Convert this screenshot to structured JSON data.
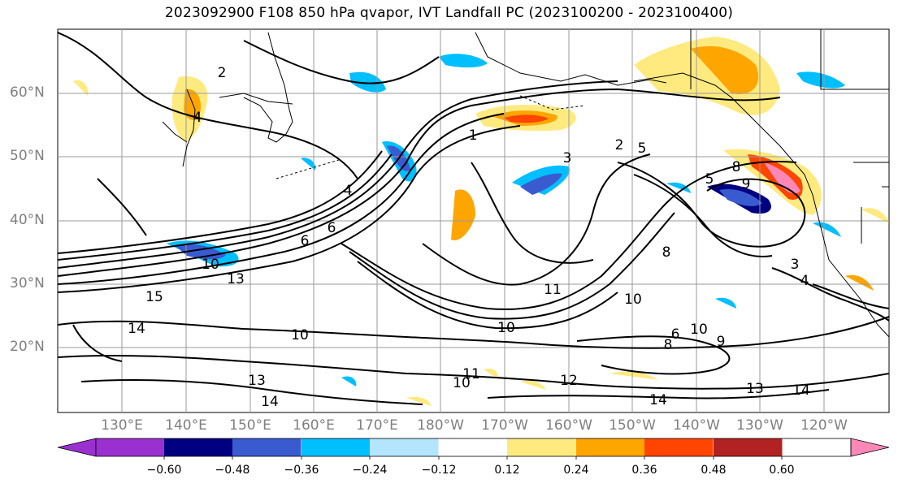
{
  "title": "2023092900 F108 850 hPa qvapor, IVT Landfall PC (2023100200 - 2023100400)",
  "latitude_labels": [
    "60°N",
    "50°N",
    "40°N",
    "30°N",
    "20°N"
  ],
  "longitude_labels": [
    "130°E",
    "140°E",
    "150°E",
    "160°E",
    "170°E",
    "180°W",
    "170°W",
    "160°W",
    "150°W",
    "140°W",
    "130°W",
    "120°W"
  ],
  "colorbar": {
    "ticks": [
      "−0.60",
      "−0.48",
      "−0.36",
      "−0.24",
      "−0.12",
      "0.12",
      "0.24",
      "0.36",
      "0.48",
      "0.60"
    ],
    "colors": [
      "#9b30d0",
      "#000080",
      "#3a5bd0",
      "#00bfff",
      "#b3e5fc",
      "#ffffff",
      "#ffea80",
      "#ffa500",
      "#ff4500",
      "#b22222",
      "#ff88b8"
    ]
  },
  "contour_labels": [
    "2",
    "4",
    "1",
    "3",
    "2",
    "5",
    "8",
    "5",
    "4",
    "6",
    "6",
    "10",
    "13",
    "15",
    "14",
    "10",
    "13",
    "14",
    "11",
    "10",
    "8",
    "10",
    "9",
    "8",
    "6",
    "10",
    "11",
    "12",
    "14",
    "13",
    "14",
    "3",
    "4",
    "9",
    "10"
  ]
}
